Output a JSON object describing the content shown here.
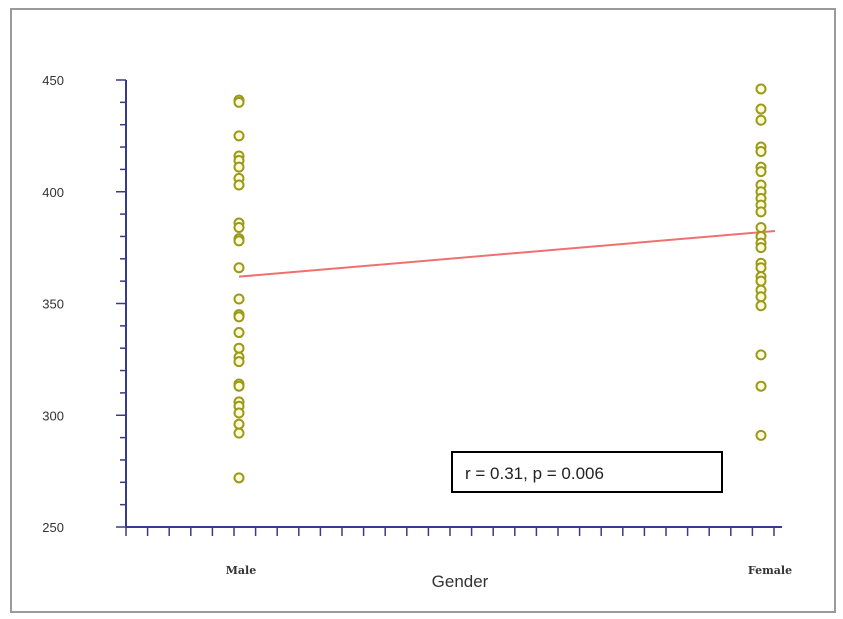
{
  "chart_data": {
    "type": "scatter",
    "xlabel": "Gender",
    "ylabel": "",
    "categories": [
      "Male",
      "Female"
    ],
    "category_labels": [
      "Male",
      "Female"
    ],
    "ylim": [
      250,
      450
    ],
    "yticks": [
      250,
      300,
      350,
      400,
      450
    ],
    "ytick_labels": [
      "250",
      "300",
      "350",
      "400",
      "450"
    ],
    "grid": false,
    "legend": "none",
    "series": [
      {
        "category": "Male",
        "values": [
          441,
          440,
          425,
          416,
          414,
          411,
          406,
          403,
          386,
          384,
          379,
          378,
          366,
          352,
          345,
          344,
          337,
          330,
          326,
          324,
          314,
          313,
          306,
          304,
          301,
          296,
          292,
          272
        ]
      },
      {
        "category": "Female",
        "values": [
          446,
          437,
          432,
          420,
          418,
          411,
          409,
          403,
          400,
          397,
          394,
          391,
          384,
          380,
          377,
          375,
          368,
          366,
          362,
          360,
          356,
          353,
          349,
          327,
          313,
          291
        ]
      }
    ],
    "trendline": {
      "x": [
        "Male",
        "Female"
      ],
      "y": [
        362,
        382
      ],
      "color": "#f07070"
    },
    "annotation": "r = 0.31, p = 0.006",
    "marker_color": "#9a9a1a",
    "marker_fill": "#fffbd8",
    "axis_color": "#3a3a8c"
  }
}
